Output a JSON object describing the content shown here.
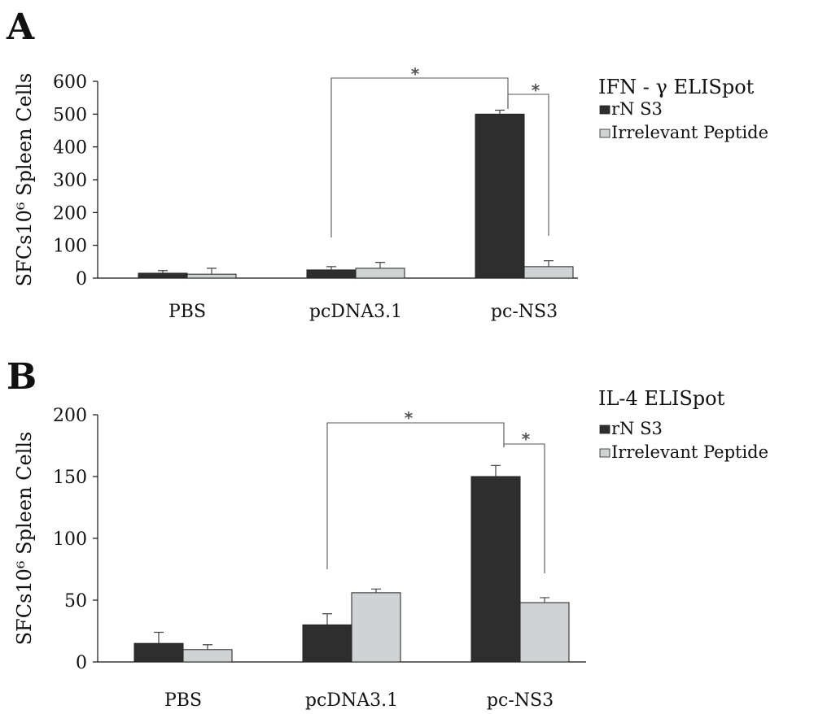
{
  "chart_data": [
    {
      "type": "bar",
      "panel_label": "A",
      "title": "",
      "xlabel": "",
      "ylabel": "SFCs10⁶ Spleen Cells",
      "categories": [
        "PBS",
        "pcDNA3.1",
        "pc-NS3"
      ],
      "ylim": [
        0,
        600
      ],
      "yticks": [
        0,
        100,
        200,
        300,
        400,
        500,
        600
      ],
      "legend_title": "IFN - γ ELISpot",
      "legend_position": "top-right",
      "grid": false,
      "series": [
        {
          "name": "rN S3",
          "values": [
            15,
            25,
            500
          ],
          "errors": [
            8,
            10,
            12
          ],
          "color": "#2e2e2e"
        },
        {
          "name": "Irrelevant Peptide",
          "values": [
            12,
            30,
            35
          ],
          "errors": [
            18,
            18,
            18
          ],
          "color": "#cfd3d3"
        }
      ],
      "annotations": [
        {
          "text": "*",
          "from": "pcDNA3.1 rN S3",
          "to": "pc-NS3 rN S3"
        },
        {
          "text": "*",
          "from": "pc-NS3 rN S3",
          "to": "pc-NS3 Irrelevant Peptide"
        }
      ]
    },
    {
      "type": "bar",
      "panel_label": "B",
      "title": "",
      "xlabel": "",
      "ylabel": "SFCs10⁶ Spleen Cells",
      "categories": [
        "PBS",
        "pcDNA3.1",
        "pc-NS3"
      ],
      "ylim": [
        0,
        200
      ],
      "yticks": [
        0,
        50,
        100,
        150,
        200
      ],
      "legend_title": "IL-4 ELISpot",
      "legend_position": "top-right",
      "grid": false,
      "series": [
        {
          "name": "rN S3",
          "values": [
            15,
            30,
            150
          ],
          "errors": [
            9,
            9,
            9
          ],
          "color": "#2e2e2e"
        },
        {
          "name": "Irrelevant Peptide",
          "values": [
            10,
            56,
            48
          ],
          "errors": [
            4,
            3,
            4
          ],
          "color": "#cfd3d3"
        }
      ],
      "annotations": [
        {
          "text": "*",
          "from": "pcDNA3.1 rN S3",
          "to": "pc-NS3 rN S3"
        },
        {
          "text": "*",
          "from": "pc-NS3 rN S3",
          "to": "pc-NS3 Irrelevant Peptide"
        }
      ]
    }
  ]
}
